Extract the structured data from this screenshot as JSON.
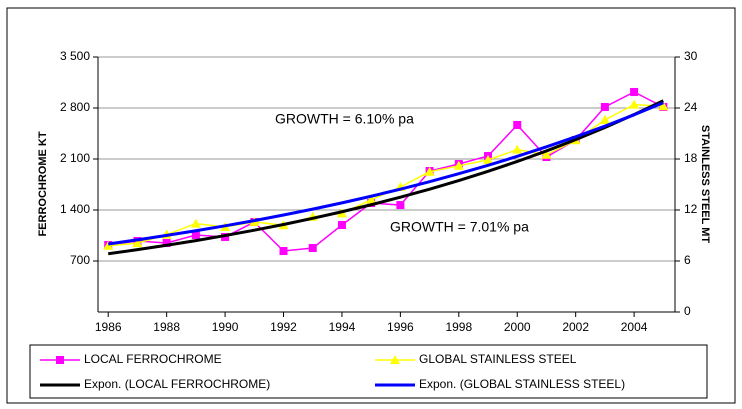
{
  "chart_data": {
    "type": "line",
    "x": [
      1986,
      1987,
      1988,
      1989,
      1990,
      1991,
      1992,
      1993,
      1994,
      1995,
      1996,
      1997,
      1998,
      1999,
      2000,
      2001,
      2002,
      2003,
      2004,
      2005
    ],
    "xlim": [
      1985.65,
      2005.4
    ],
    "xticks": [
      1986,
      1988,
      1990,
      1992,
      1994,
      1996,
      1998,
      2000,
      2002,
      2004
    ],
    "ylim": [
      0,
      3500
    ],
    "yticks": [
      {
        "value": 700,
        "label": "700"
      },
      {
        "value": 1400,
        "label": "1 400"
      },
      {
        "value": 2100,
        "label": "2 100"
      },
      {
        "value": 2800,
        "label": "2 800"
      },
      {
        "value": 3500,
        "label": "3 500"
      }
    ],
    "y2lim": [
      0,
      30
    ],
    "y2ticks": [
      0,
      6,
      12,
      18,
      24,
      30
    ],
    "y_label": "FERROCHROME KT",
    "y2_label": "STAINLESS STEEL MT",
    "grid": true,
    "annotations": [
      "GROWTH = 6.10% pa",
      "GROWTH = 7.01% pa"
    ],
    "series": [
      {
        "name": "LOCAL FERROCHROME",
        "color": "#ff00ff",
        "marker": "square",
        "values": [
          920,
          975,
          947,
          1057,
          1030,
          1235,
          837,
          878,
          1194,
          1496,
          1468,
          1935,
          2031,
          2141,
          2567,
          2127,
          2361,
          2814,
          3020,
          2814
        ]
      },
      {
        "name": "GLOBAL STAINLESS STEEL",
        "color": "#ffff00",
        "marker": "triangle",
        "axis": "y2",
        "values": [
          7.8,
          8.1,
          9.1,
          10.4,
          10.0,
          10.6,
          10.2,
          11.2,
          11.6,
          13.2,
          14.7,
          16.5,
          17.2,
          17.9,
          19.1,
          18.5,
          20.2,
          22.6,
          24.4,
          24.2
        ]
      },
      {
        "name": "Expon. (LOCAL FERROCHROME)",
        "color": "#000000",
        "marker": "none",
        "values": [
          800,
          856,
          916,
          980,
          1049,
          1123,
          1201,
          1286,
          1376,
          1472,
          1576,
          1686,
          1804,
          1931,
          2066,
          2211,
          2366,
          2532,
          2710,
          2900
        ]
      },
      {
        "name": "Expon. (GLOBAL STAINLESS STEEL)",
        "color": "#0000ff",
        "marker": "none",
        "axis": "y2",
        "values": [
          8.0,
          8.49,
          9.01,
          9.56,
          10.14,
          10.75,
          11.41,
          12.1,
          12.84,
          13.62,
          14.45,
          15.33,
          16.27,
          17.26,
          18.31,
          19.43,
          20.61,
          21.87,
          23.2,
          24.62
        ]
      }
    ]
  }
}
